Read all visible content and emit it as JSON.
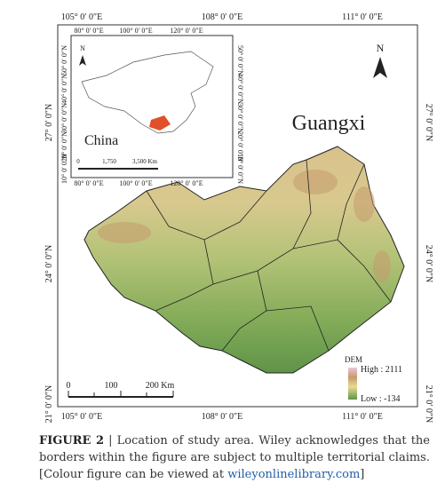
{
  "map": {
    "lon_labels": [
      "105° 0′ 0″E",
      "108° 0′ 0″E",
      "111° 0′ 0″E"
    ],
    "lat_labels": [
      "27° 0′ 0″N",
      "24° 0′ 0″N",
      "21° 0′ 0″N"
    ],
    "title": "Guangxi",
    "north": "N",
    "scale_labels": [
      "0",
      "100",
      "200 Km"
    ],
    "legend": {
      "title": "DEM",
      "high": "High : 2111",
      "low": "Low : -134"
    }
  },
  "inset": {
    "lon_labels": [
      "80° 0′ 0″E",
      "100° 0′ 0″E",
      "120° 0′ 0″E"
    ],
    "lat_labels": [
      "50° 0′ 0″N",
      "40° 0′ 0″N",
      "30° 0′ 0″N",
      "20° 0′ 0″N",
      "10° 0′ 0″N"
    ],
    "title": "China",
    "north": "N",
    "scale_labels": [
      "0",
      "1,750",
      "3,500 Km"
    ]
  },
  "caption": {
    "label": "FIGURE 2",
    "separator": "|",
    "text": "Location of study area. Wiley acknowledges that the borders within the figure are subject to multiple territorial claims.",
    "note": "[Colour figure can be viewed at",
    "link": "wileyonlinelibrary.com",
    "note_end": "]"
  }
}
